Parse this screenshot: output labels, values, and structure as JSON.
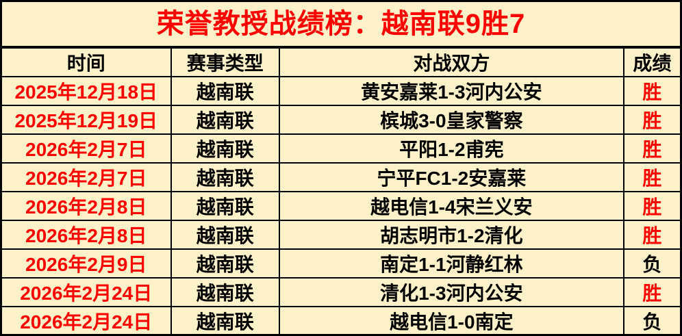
{
  "title": "荣誉教授战绩榜：越南联9胜7",
  "chart_data": {
    "type": "table",
    "title": "荣誉教授战绩榜：越南联9胜7",
    "columns": [
      "时间",
      "赛事类型",
      "对战双方",
      "成绩"
    ],
    "rows": [
      [
        "2025年12月18日",
        "越南联",
        "黄安嘉莱1-3河内公安",
        "胜"
      ],
      [
        "2025年12月19日",
        "越南联",
        "槟城3-0皇家警察",
        "胜"
      ],
      [
        "2026年2月7日",
        "越南联",
        "平阳1-2甫宪",
        "胜"
      ],
      [
        "2026年2月7日",
        "越南联",
        "宁平FC1-2安嘉莱",
        "胜"
      ],
      [
        "2026年2月8日",
        "越南联",
        "越电信1-4宋兰义安",
        "胜"
      ],
      [
        "2026年2月8日",
        "越南联",
        "胡志明市1-2清化",
        "胜"
      ],
      [
        "2026年2月9日",
        "越南联",
        "南定1-1河静红林",
        "负"
      ],
      [
        "2026年2月24日",
        "越南联",
        "清化1-3河内公安",
        "胜"
      ],
      [
        "2026年2月24日",
        "越南联",
        "越电信1-0南定",
        "负"
      ]
    ],
    "summary": {
      "league": "越南联",
      "record": "9胜7"
    }
  },
  "colors": {
    "background": "#FCF1C9",
    "border": "#000000",
    "title_red": "#FF0000",
    "date_red": "#FF0000",
    "win_red": "#FF0000",
    "loss_black": "#000000"
  },
  "result_colors": {
    "胜": "#FF0000",
    "负": "#000000"
  }
}
